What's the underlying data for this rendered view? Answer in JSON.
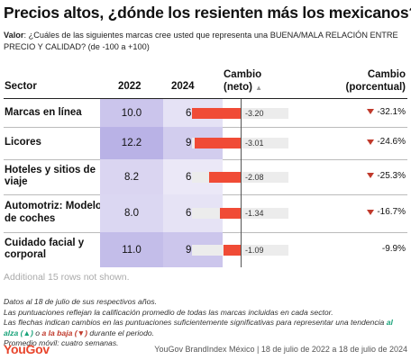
{
  "title": "Precios altos, ¿dónde los resienten más los mexicanos?",
  "subtitle": {
    "label": "Valor",
    "text": ": ¿Cuáles de las siguientes marcas cree usted que representa una BUENA/MALA RELACIÓN ENTRE PRECIO Y CALIDAD? (de -100 a +100)"
  },
  "headers": {
    "sector": "Sector",
    "y2022": "2022",
    "y2024": "2024",
    "change_line1": "Cambio",
    "change_line2": "(neto)",
    "change_sort_icon": "triangle-up",
    "pct_line1": "Cambio",
    "pct_line2": "(porcentual)"
  },
  "colors": {
    "bar": "#f04b36",
    "cell_max": "#b9b2e6",
    "cell_min": "#ebe8f7",
    "down_arrow": "#c0392b"
  },
  "chart_data": {
    "type": "table",
    "columns": [
      "Sector",
      "2022",
      "2024",
      "Cambio (neto)",
      "Cambio (porcentual)"
    ],
    "rows": [
      {
        "sector": "Marcas en línea",
        "v2022": "10.0",
        "v2024": "6.8",
        "change": -3.2,
        "change_label": "-3.20",
        "pct": "-32.1%",
        "significant": true
      },
      {
        "sector": "Licores",
        "v2022": "12.2",
        "v2024": "9.2",
        "change": -3.01,
        "change_label": "-3.01",
        "pct": "-24.6%",
        "significant": true
      },
      {
        "sector": "Hoteles y sitios de viaje",
        "v2022": "8.2",
        "v2024": "6.1",
        "change": -2.08,
        "change_label": "-2.08",
        "pct": "-25.3%",
        "significant": true
      },
      {
        "sector": "Automotriz: Modelos de coches",
        "v2022": "8.0",
        "v2024": "6.7",
        "change": -1.34,
        "change_label": "-1.34",
        "pct": "-16.7%",
        "significant": true
      },
      {
        "sector": "Cuidado facial y corporal",
        "v2022": "11.0",
        "v2024": "9.9",
        "change": -1.09,
        "change_label": "-1.09",
        "pct": "-9.9%",
        "significant": false
      }
    ]
  },
  "more_rows": "Additional 15 rows not shown.",
  "footnotes": {
    "line1": "Datos al 18 de julio de sus respectivos años.",
    "line2": "Las puntuaciones reflejan la calificación promedio de todas las marcas incluidas en cada sector.",
    "line3_pre": "Las flechas indican cambios en las puntuaciones suficientemente significativas para representar una tendencia ",
    "line3_up": "al alza (▲)",
    "line3_mid": " o ",
    "line3_down": "a la baja (▼)",
    "line3_post": " durante el periodo.",
    "line4": "Promedio móvil: cuatro semanas."
  },
  "logo": "YouGov",
  "credit": "YouGov BrandIndex México | 18 de julio de 2022 a 18 de julio de 2024"
}
